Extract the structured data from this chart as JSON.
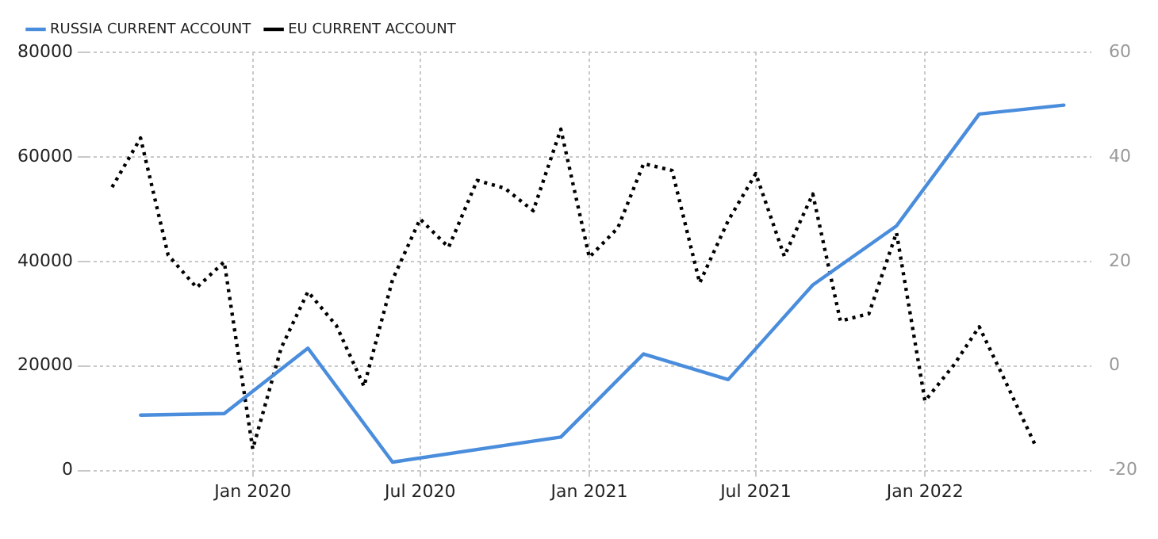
{
  "chart_data": {
    "type": "line",
    "legend": "top left",
    "grid": true,
    "marker": "none",
    "xlim": [
      "2019-07-05",
      "2022-07-01"
    ],
    "xticks": [
      {
        "value": "2020-01-01",
        "label": "Jan 2020"
      },
      {
        "value": "2020-07-01",
        "label": "Jul 2020"
      },
      {
        "value": "2021-01-01",
        "label": "Jan 2021"
      },
      {
        "value": "2021-07-01",
        "label": "Jul 2021"
      },
      {
        "value": "2022-01-01",
        "label": "Jan 2022"
      }
    ],
    "ylim": [
      0,
      80000
    ],
    "yticks": [
      0,
      20000,
      40000,
      60000,
      80000
    ],
    "y2lim": [
      -20,
      60
    ],
    "y2ticks": [
      -20,
      0,
      20,
      40,
      60
    ],
    "series": [
      {
        "name": "RUSSIA CURRENT ACCOUNT",
        "color": "#4a8ddc",
        "line_style": "solid",
        "x": [
          "2019-09",
          "2019-12",
          "2020-03",
          "2020-06",
          "2020-12",
          "2021-03",
          "2021-06",
          "2021-09",
          "2021-12",
          "2022-03",
          "2022-06"
        ],
        "values": [
          10600,
          10900,
          23400,
          1600,
          6400,
          22300,
          17400,
          35500,
          46800,
          68200,
          69900
        ]
      },
      {
        "name": "EU CURRENT ACCOUNT",
        "color": "#000000",
        "line_style": "dotted",
        "axis": "y2",
        "x": [
          "2019-08",
          "2019-09",
          "2019-10",
          "2019-11",
          "2019-12",
          "2020-01",
          "2020-02",
          "2020-03",
          "2020-04",
          "2020-05",
          "2020-06",
          "2020-07",
          "2020-08",
          "2020-09",
          "2020-10",
          "2020-11",
          "2020-12",
          "2021-01",
          "2021-02",
          "2021-03",
          "2021-04",
          "2021-05",
          "2021-06",
          "2021-07",
          "2021-08",
          "2021-09",
          "2021-10",
          "2021-11",
          "2021-12",
          "2022-01",
          "2022-02",
          "2022-03",
          "2022-04",
          "2022-05"
        ],
        "values": [
          34.2,
          43.6,
          21.2,
          15.0,
          19.9,
          -15.9,
          3.5,
          14.2,
          7.7,
          -3.9,
          16.5,
          28.1,
          22.7,
          35.5,
          34.0,
          29.7,
          45.3,
          20.8,
          26.4,
          38.7,
          37.4,
          15.9,
          27.8,
          36.8,
          21.0,
          32.9,
          8.6,
          10.0,
          25.5,
          -6.7,
          0.1,
          7.5,
          -3.9,
          -15.2
        ]
      }
    ]
  }
}
